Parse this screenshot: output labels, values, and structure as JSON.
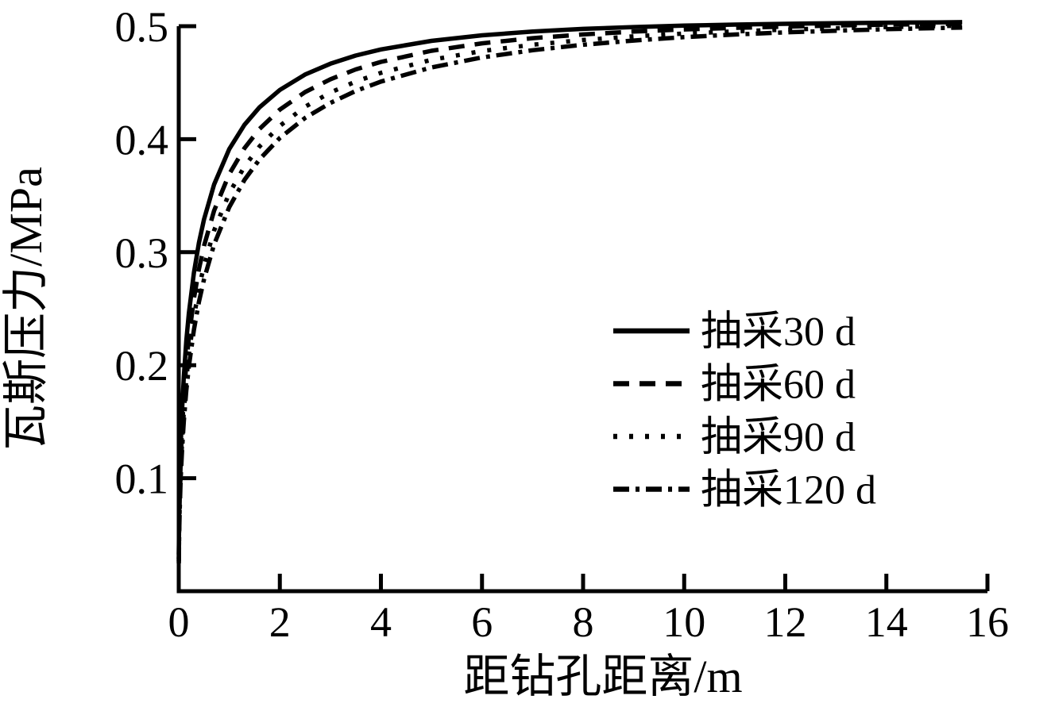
{
  "figure": {
    "background_color": "#ffffff",
    "ink_color": "#000000"
  },
  "chart_data": {
    "type": "line",
    "title": "",
    "xlabel": "距钻孔距离/m",
    "ylabel": "瓦斯压力/MPa",
    "xlim": [
      0,
      16
    ],
    "ylim": [
      0,
      0.5
    ],
    "x_ticks": [
      0,
      2,
      4,
      6,
      8,
      10,
      12,
      14,
      16
    ],
    "x_tick_labels": [
      "0",
      "2",
      "4",
      "6",
      "8",
      "10",
      "12",
      "14",
      "16"
    ],
    "y_ticks": [
      0.1,
      0.2,
      0.3,
      0.4,
      0.5
    ],
    "y_tick_labels": [
      "0.1",
      "0.2",
      "0.3",
      "0.4",
      "0.5"
    ],
    "grid": false,
    "asymptote_pressure_mpa": 0.505,
    "legend": {
      "position": "inside-middle-right",
      "entries": [
        "抽采30 d",
        "抽采60 d",
        "抽采90 d",
        "抽采120 d"
      ]
    },
    "x": [
      0.002,
      0.005,
      0.01,
      0.02,
      0.04,
      0.07,
      0.1,
      0.15,
      0.2,
      0.3,
      0.4,
      0.5,
      0.7,
      1,
      1.3,
      1.6,
      2,
      2.5,
      3,
      3.5,
      4,
      5,
      6,
      7,
      8,
      9,
      10,
      11,
      12,
      13,
      14,
      15,
      15.5
    ],
    "series": [
      {
        "name": "抽采30 d",
        "line_style": "solid",
        "color": "#000000",
        "values": [
          0.0326,
          0.0504,
          0.0699,
          0.096,
          0.1302,
          0.1646,
          0.1899,
          0.2215,
          0.2457,
          0.2818,
          0.3083,
          0.329,
          0.3599,
          0.3913,
          0.4127,
          0.4283,
          0.4436,
          0.4572,
          0.4668,
          0.474,
          0.4794,
          0.487,
          0.4919,
          0.4952,
          0.4976,
          0.4992,
          0.5005,
          0.5014,
          0.5021,
          0.5027,
          0.5031,
          0.5034,
          0.5036
        ]
      },
      {
        "name": "抽采60 d",
        "line_style": "dashed",
        "color": "#000000",
        "values": [
          0.0288,
          0.0448,
          0.0621,
          0.0856,
          0.1166,
          0.1482,
          0.1716,
          0.2013,
          0.2243,
          0.259,
          0.2849,
          0.3055,
          0.3367,
          0.3692,
          0.392,
          0.4091,
          0.4262,
          0.4417,
          0.453,
          0.4617,
          0.4684,
          0.4782,
          0.4848,
          0.4894,
          0.4927,
          0.4952,
          0.4971,
          0.4985,
          0.4996,
          0.5006,
          0.5013,
          0.5019,
          0.5021
        ]
      },
      {
        "name": "抽采90 d",
        "line_style": "dotted",
        "color": "#000000",
        "values": [
          0.0263,
          0.0409,
          0.0569,
          0.0785,
          0.1074,
          0.1369,
          0.159,
          0.1872,
          0.2091,
          0.2426,
          0.2679,
          0.2881,
          0.3192,
          0.3522,
          0.3758,
          0.3937,
          0.4118,
          0.4287,
          0.4413,
          0.451,
          0.4587,
          0.4702,
          0.478,
          0.4836,
          0.4878,
          0.491,
          0.4935,
          0.4954,
          0.497,
          0.4982,
          0.4992,
          0.5001,
          0.5005
        ]
      },
      {
        "name": "抽采120 d",
        "line_style": "dashdot",
        "color": "#000000",
        "values": [
          0.0246,
          0.0384,
          0.0534,
          0.0738,
          0.1012,
          0.1293,
          0.1504,
          0.1775,
          0.1987,
          0.2313,
          0.256,
          0.2759,
          0.3068,
          0.3399,
          0.3639,
          0.3822,
          0.4011,
          0.4188,
          0.4321,
          0.4426,
          0.451,
          0.4635,
          0.4723,
          0.4787,
          0.4836,
          0.4873,
          0.4903,
          0.4926,
          0.4945,
          0.496,
          0.4973,
          0.4983,
          0.4988
        ]
      }
    ]
  }
}
